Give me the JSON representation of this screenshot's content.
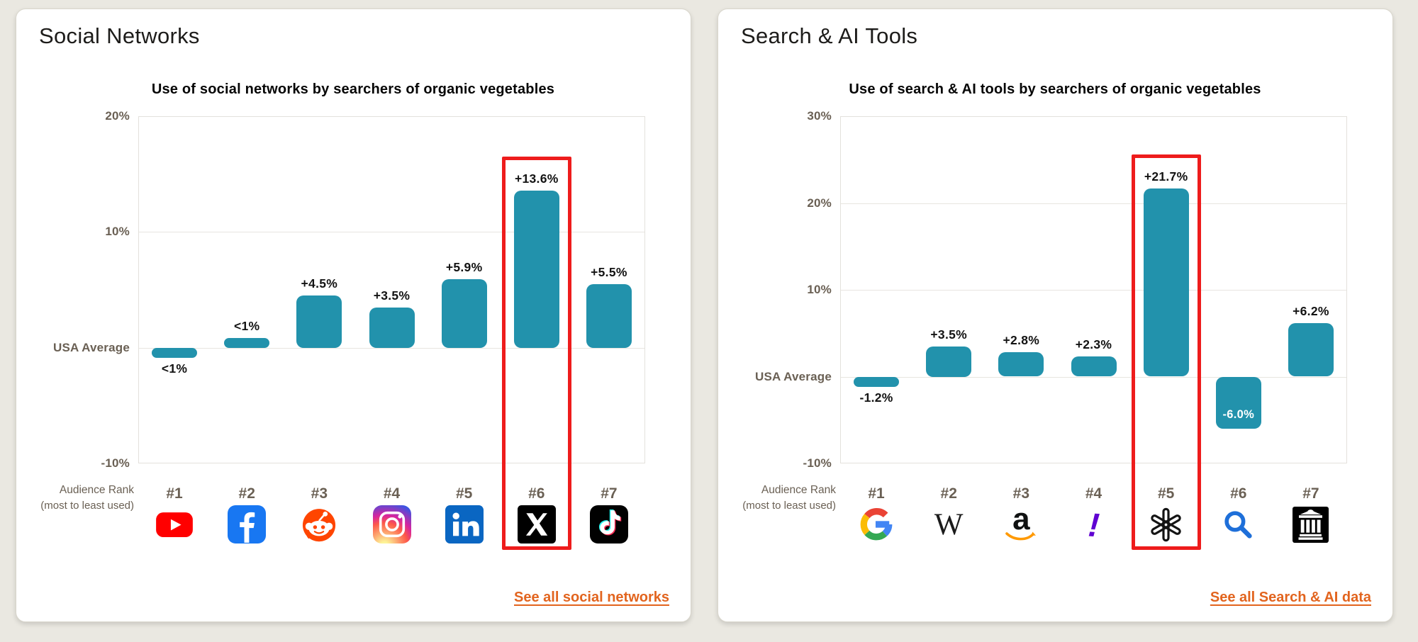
{
  "colors": {
    "background": "#eae8e1",
    "card": "#ffffff",
    "bar": "#2292ac",
    "highlight": "#ee1c1c",
    "link": "#e2641e",
    "axis_text": "#6a6054",
    "value_label": "#131313"
  },
  "cards": [
    {
      "title": "Social Networks",
      "link_label": "See all social networks",
      "axis_note_1": "Audience Rank",
      "axis_note_2": "(most to least used)"
    },
    {
      "title": "Search & AI Tools",
      "link_label": "See all Search & AI data",
      "axis_note_1": "Audience Rank",
      "axis_note_2": "(most to least used)"
    }
  ],
  "chart_data": [
    {
      "type": "bar",
      "title": "Use of social networks by searchers of organic vegetables",
      "ylim": [
        -10,
        20
      ],
      "grid": true,
      "ticks": [
        {
          "label": "20%",
          "value": 20
        },
        {
          "label": "10%",
          "value": 10
        },
        {
          "label": "USA Average",
          "value": 0
        },
        {
          "label": "-10%",
          "value": -10
        }
      ],
      "highlight_index": 5,
      "items": [
        {
          "rank": "#1",
          "name": "YouTube",
          "icon": "youtube-icon",
          "value": -0.5,
          "label": "<1%",
          "label_position": "below"
        },
        {
          "rank": "#2",
          "name": "Facebook",
          "icon": "facebook-icon",
          "value": 0.5,
          "label": "<1%",
          "label_position": "above"
        },
        {
          "rank": "#3",
          "name": "Reddit",
          "icon": "reddit-icon",
          "value": 4.5,
          "label": "+4.5%",
          "label_position": "above"
        },
        {
          "rank": "#4",
          "name": "Instagram",
          "icon": "instagram-icon",
          "value": 3.5,
          "label": "+3.5%",
          "label_position": "above"
        },
        {
          "rank": "#5",
          "name": "LinkedIn",
          "icon": "linkedin-icon",
          "value": 5.9,
          "label": "+5.9%",
          "label_position": "above"
        },
        {
          "rank": "#6",
          "name": "X",
          "icon": "x-icon",
          "value": 13.6,
          "label": "+13.6%",
          "label_position": "above"
        },
        {
          "rank": "#7",
          "name": "TikTok",
          "icon": "tiktok-icon",
          "value": 5.5,
          "label": "+5.5%",
          "label_position": "above"
        }
      ]
    },
    {
      "type": "bar",
      "title": "Use of search & AI tools by searchers of organic vegetables",
      "ylim": [
        -10,
        30
      ],
      "grid": true,
      "ticks": [
        {
          "label": "30%",
          "value": 30
        },
        {
          "label": "20%",
          "value": 20
        },
        {
          "label": "10%",
          "value": 10
        },
        {
          "label": "USA Average",
          "value": 0
        },
        {
          "label": "-10%",
          "value": -10
        }
      ],
      "highlight_index": 4,
      "items": [
        {
          "rank": "#1",
          "name": "Google",
          "icon": "google-icon",
          "value": -1.2,
          "label": "-1.2%",
          "label_position": "below"
        },
        {
          "rank": "#2",
          "name": "Wikipedia",
          "icon": "wikipedia-icon",
          "value": 3.5,
          "label": "+3.5%",
          "label_position": "above"
        },
        {
          "rank": "#3",
          "name": "Amazon",
          "icon": "amazon-icon",
          "value": 2.8,
          "label": "+2.8%",
          "label_position": "above"
        },
        {
          "rank": "#4",
          "name": "Yahoo",
          "icon": "yahoo-icon",
          "value": 2.3,
          "label": "+2.3%",
          "label_position": "above"
        },
        {
          "rank": "#5",
          "name": "ChatGPT",
          "icon": "openai-icon",
          "value": 21.7,
          "label": "+21.7%",
          "label_position": "above"
        },
        {
          "rank": "#6",
          "name": "Search",
          "icon": "search-magnifier-icon",
          "value": -6.0,
          "label": "-6.0%",
          "label_position": "inside"
        },
        {
          "rank": "#7",
          "name": "Internet Archive",
          "icon": "internet-archive-icon",
          "value": 6.2,
          "label": "+6.2%",
          "label_position": "above"
        }
      ]
    }
  ]
}
